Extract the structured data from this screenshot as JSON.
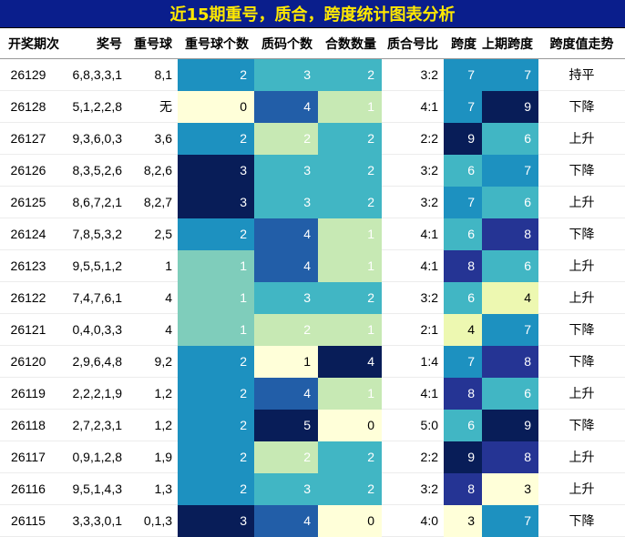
{
  "title": "近15期重号，质合，跨度统计图表分析",
  "columns": [
    "开奖期次",
    "奖号",
    "重号球",
    "重号球个数",
    "质码个数",
    "合数数量",
    "质合号比",
    "跨度",
    "上期跨度",
    "跨度值走势"
  ],
  "colors": {
    "title_bg": "#0a1e8c",
    "title_text": "#ffe800",
    "heat_scale": [
      "#ffffd9",
      "#edf8b1",
      "#c7e9b4",
      "#7fcdbb",
      "#41b6c4",
      "#1d91c0",
      "#225ea8",
      "#253494",
      "#081d58"
    ]
  },
  "chart_data": {
    "type": "table",
    "title": "近15期重号，质合，跨度统计图表分析",
    "columns": [
      "开奖期次",
      "奖号",
      "重号球",
      "重号球个数",
      "质码个数",
      "合数数量",
      "质合号比",
      "跨度",
      "上期跨度",
      "跨度值走势"
    ],
    "rows": [
      {
        "period": "26129",
        "numbers": "6,8,3,3,1",
        "repeat_balls": "8,1",
        "repeat_count": 2,
        "prime_count": 3,
        "composite_count": 2,
        "ratio": "3:2",
        "span": 7,
        "prev_span": 7,
        "trend": "持平"
      },
      {
        "period": "26128",
        "numbers": "5,1,2,2,8",
        "repeat_balls": "无",
        "repeat_count": 0,
        "prime_count": 4,
        "composite_count": 1,
        "ratio": "4:1",
        "span": 7,
        "prev_span": 9,
        "trend": "下降"
      },
      {
        "period": "26127",
        "numbers": "9,3,6,0,3",
        "repeat_balls": "3,6",
        "repeat_count": 2,
        "prime_count": 2,
        "composite_count": 2,
        "ratio": "2:2",
        "span": 9,
        "prev_span": 6,
        "trend": "上升"
      },
      {
        "period": "26126",
        "numbers": "8,3,5,2,6",
        "repeat_balls": "8,2,6",
        "repeat_count": 3,
        "prime_count": 3,
        "composite_count": 2,
        "ratio": "3:2",
        "span": 6,
        "prev_span": 7,
        "trend": "下降"
      },
      {
        "period": "26125",
        "numbers": "8,6,7,2,1",
        "repeat_balls": "8,2,7",
        "repeat_count": 3,
        "prime_count": 3,
        "composite_count": 2,
        "ratio": "3:2",
        "span": 7,
        "prev_span": 6,
        "trend": "上升"
      },
      {
        "period": "26124",
        "numbers": "7,8,5,3,2",
        "repeat_balls": "2,5",
        "repeat_count": 2,
        "prime_count": 4,
        "composite_count": 1,
        "ratio": "4:1",
        "span": 6,
        "prev_span": 8,
        "trend": "下降"
      },
      {
        "period": "26123",
        "numbers": "9,5,5,1,2",
        "repeat_balls": "1",
        "repeat_count": 1,
        "prime_count": 4,
        "composite_count": 1,
        "ratio": "4:1",
        "span": 8,
        "prev_span": 6,
        "trend": "上升"
      },
      {
        "period": "26122",
        "numbers": "7,4,7,6,1",
        "repeat_balls": "4",
        "repeat_count": 1,
        "prime_count": 3,
        "composite_count": 2,
        "ratio": "3:2",
        "span": 6,
        "prev_span": 4,
        "trend": "上升"
      },
      {
        "period": "26121",
        "numbers": "0,4,0,3,3",
        "repeat_balls": "4",
        "repeat_count": 1,
        "prime_count": 2,
        "composite_count": 1,
        "ratio": "2:1",
        "span": 4,
        "prev_span": 7,
        "trend": "下降"
      },
      {
        "period": "26120",
        "numbers": "2,9,6,4,8",
        "repeat_balls": "9,2",
        "repeat_count": 2,
        "prime_count": 1,
        "composite_count": 4,
        "ratio": "1:4",
        "span": 7,
        "prev_span": 8,
        "trend": "下降"
      },
      {
        "period": "26119",
        "numbers": "2,2,2,1,9",
        "repeat_balls": "1,2",
        "repeat_count": 2,
        "prime_count": 4,
        "composite_count": 1,
        "ratio": "4:1",
        "span": 8,
        "prev_span": 6,
        "trend": "上升"
      },
      {
        "period": "26118",
        "numbers": "2,7,2,3,1",
        "repeat_balls": "1,2",
        "repeat_count": 2,
        "prime_count": 5,
        "composite_count": 0,
        "ratio": "5:0",
        "span": 6,
        "prev_span": 9,
        "trend": "下降"
      },
      {
        "period": "26117",
        "numbers": "0,9,1,2,8",
        "repeat_balls": "1,9",
        "repeat_count": 2,
        "prime_count": 2,
        "composite_count": 2,
        "ratio": "2:2",
        "span": 9,
        "prev_span": 8,
        "trend": "上升"
      },
      {
        "period": "26116",
        "numbers": "9,5,1,4,3",
        "repeat_balls": "1,3",
        "repeat_count": 2,
        "prime_count": 3,
        "composite_count": 2,
        "ratio": "3:2",
        "span": 8,
        "prev_span": 3,
        "trend": "上升"
      },
      {
        "period": "26115",
        "numbers": "3,3,3,0,1",
        "repeat_balls": "0,1,3",
        "repeat_count": 3,
        "prime_count": 4,
        "composite_count": 0,
        "ratio": "4:0",
        "span": 3,
        "prev_span": 7,
        "trend": "下降"
      }
    ]
  }
}
